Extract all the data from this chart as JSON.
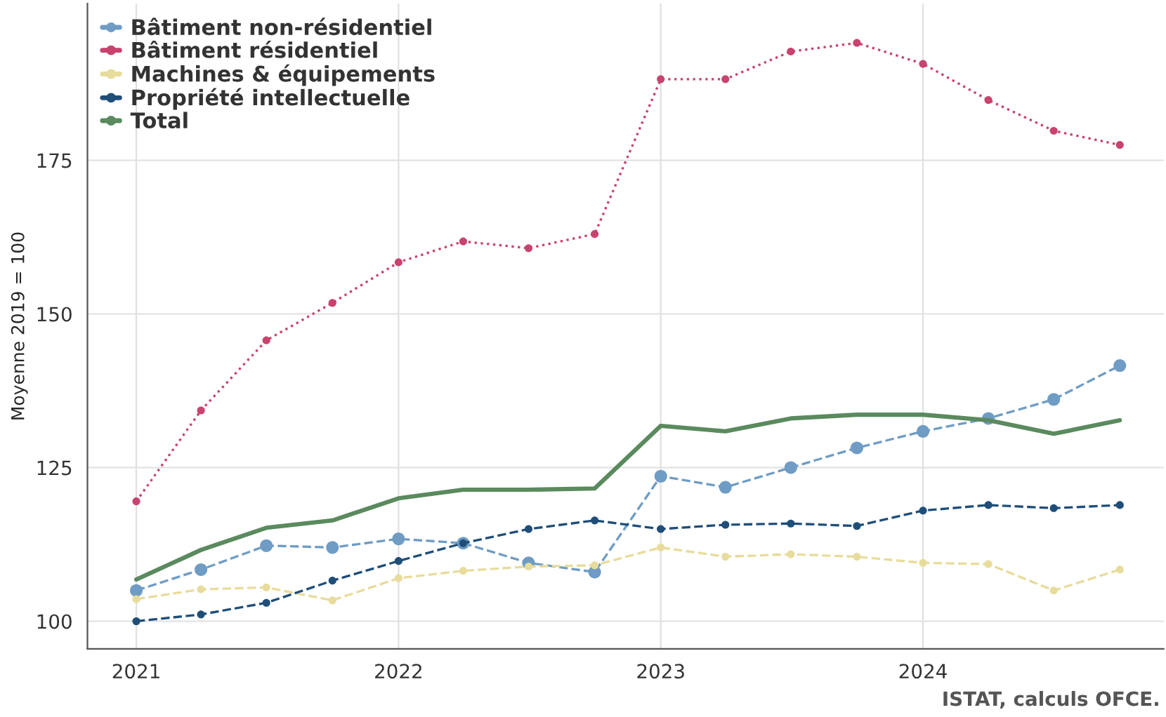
{
  "chart_data": {
    "type": "line",
    "ylabel": "Moyenne 2019 = 100",
    "x": [
      "2021-01",
      "2021-04",
      "2021-07",
      "2021-10",
      "2022-01",
      "2022-04",
      "2022-07",
      "2022-10",
      "2023-01",
      "2023-04",
      "2023-07",
      "2023-10",
      "2024-01",
      "2024-04",
      "2024-07",
      "2024-10"
    ],
    "series": [
      {
        "name": "Bâtiment non-résidentiel",
        "color": "#6f9cc4",
        "line_style": "dashed",
        "marker": "circle",
        "values": [
          105,
          108.4,
          112.3,
          112,
          113.4,
          112.7,
          109.5,
          108,
          123.6,
          121.8,
          125,
          128.2,
          130.9,
          133,
          136.1,
          141.6
        ]
      },
      {
        "name": "Bâtiment résidentiel",
        "color": "#c8436e",
        "line_style": "dotted",
        "marker": "circle",
        "values": [
          119.5,
          134.3,
          145.7,
          151.8,
          158.4,
          161.8,
          160.7,
          163,
          188.2,
          188.2,
          192.7,
          194.1,
          190.7,
          184.8,
          179.8,
          177.5
        ]
      },
      {
        "name": "Machines & équipements",
        "color": "#e8dc9c",
        "line_style": "dashed",
        "marker": "circle",
        "values": [
          103.6,
          105.2,
          105.5,
          103.4,
          107,
          108.2,
          108.9,
          109.1,
          112,
          110.5,
          110.9,
          110.5,
          109.5,
          109.3,
          105,
          108.4
        ]
      },
      {
        "name": "Propriété intellectuelle",
        "color": "#1f4e79",
        "line_style": "dashed",
        "marker": "circle",
        "values": [
          100,
          101.1,
          103,
          106.6,
          109.8,
          112.7,
          115,
          116.4,
          115,
          115.7,
          115.9,
          115.5,
          118,
          118.9,
          118.4,
          118.9
        ]
      },
      {
        "name": "Total",
        "color": "#5a8a5e",
        "line_style": "solid",
        "marker": "none",
        "values": [
          106.8,
          111.6,
          115.2,
          116.4,
          120,
          121.4,
          121.4,
          121.6,
          131.8,
          130.9,
          133,
          133.6,
          133.6,
          132.7,
          130.5,
          132.7
        ]
      }
    ],
    "xlim": [
      "2020-10-25",
      "2024-12-01"
    ],
    "xticks": [
      {
        "value": "2021-01-01",
        "label": "2021"
      },
      {
        "value": "2022-01-01",
        "label": "2022"
      },
      {
        "value": "2023-01-01",
        "label": "2023"
      },
      {
        "value": "2024-01-01",
        "label": "2024"
      }
    ],
    "ylim": [
      95.5,
      200.5
    ],
    "yticks": [
      100,
      125,
      150,
      175
    ],
    "grid": true,
    "legend": "top left",
    "annotations": [
      "ISTAT, calculs OFCE."
    ]
  }
}
